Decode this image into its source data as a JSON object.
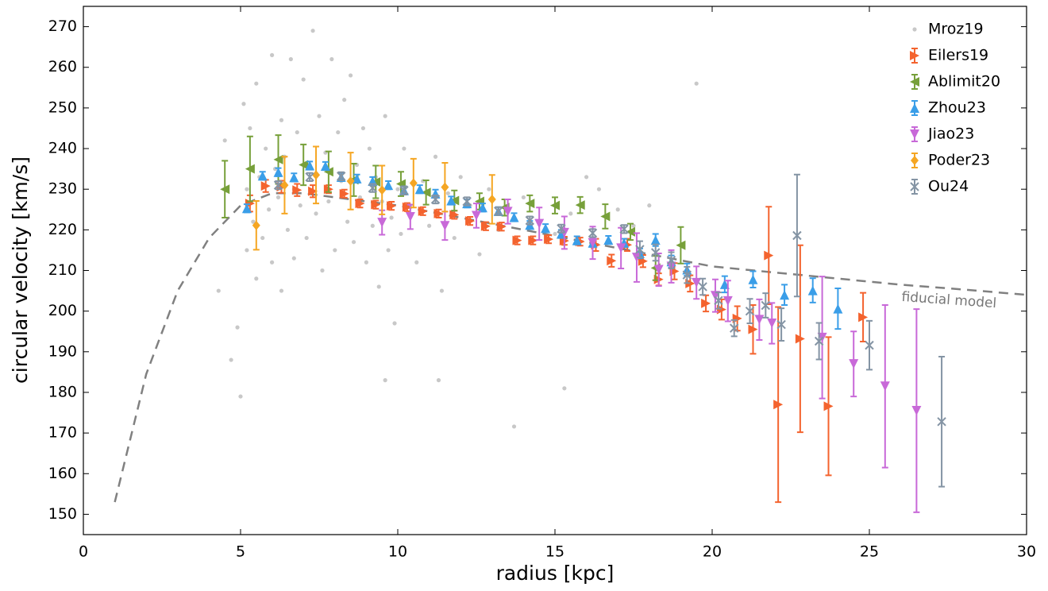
{
  "chart_data": {
    "type": "errorbar",
    "xlabel": "radius [kpc]",
    "ylabel": "circular velocity [km/s]",
    "xlim": [
      0,
      30
    ],
    "ylim": [
      145,
      275
    ],
    "xticks": [
      0,
      5,
      10,
      15,
      20,
      25,
      30
    ],
    "yticks": [
      150,
      160,
      170,
      180,
      190,
      200,
      210,
      220,
      230,
      240,
      250,
      260,
      270
    ],
    "legend": "upper right",
    "model": {
      "label": "fiducial model",
      "color": "#808080",
      "x": [
        1,
        2,
        3,
        4,
        5,
        6,
        7,
        8,
        10,
        12,
        14,
        16,
        18,
        20,
        22,
        24,
        26,
        28,
        30
      ],
      "values": [
        153,
        184.5,
        205,
        218,
        226,
        229,
        229,
        228,
        226,
        223,
        220,
        217,
        214,
        211,
        209.5,
        208,
        206.5,
        205.3,
        204
      ]
    },
    "series": [
      {
        "name": "Mroz19",
        "color": "#c8c8c8",
        "marker": "circle",
        "x": [
          4.3,
          4.5,
          4.7,
          4.9,
          5.0,
          5.1,
          5.2,
          5.2,
          5.3,
          5.4,
          5.5,
          5.5,
          5.6,
          5.7,
          5.8,
          5.9,
          6.0,
          6.0,
          6.1,
          6.2,
          6.3,
          6.3,
          6.4,
          6.5,
          6.6,
          6.7,
          6.7,
          6.8,
          6.9,
          7.0,
          7.1,
          7.2,
          7.3,
          7.4,
          7.5,
          7.6,
          7.7,
          7.8,
          7.9,
          8.0,
          8.1,
          8.2,
          8.3,
          8.4,
          8.5,
          8.6,
          8.7,
          8.8,
          8.9,
          9.0,
          9.1,
          9.2,
          9.3,
          9.4,
          9.5,
          9.6,
          9.7,
          9.8,
          9.9,
          10.0,
          10.1,
          10.2,
          10.4,
          10.6,
          10.8,
          11.0,
          11.2,
          11.4,
          11.6,
          11.8,
          12.0,
          12.3,
          12.6,
          12.9,
          13.2,
          13.5,
          14.0,
          14.5,
          15.0,
          15.5,
          16.0,
          16.4,
          17.0,
          17.5,
          18.0,
          19.5,
          13.7,
          15.3,
          11.3,
          9.6
        ],
        "values": [
          205,
          242,
          188,
          196,
          179,
          251,
          230,
          215,
          245,
          222,
          256,
          208,
          233,
          218,
          240,
          225,
          263,
          212,
          235,
          228,
          247,
          205,
          238,
          220,
          262,
          230,
          213,
          244,
          226,
          257,
          218,
          236,
          269,
          224,
          248,
          210,
          239,
          227,
          262,
          215,
          244,
          232,
          252,
          222,
          258,
          217,
          236,
          228,
          245,
          212,
          240,
          221,
          233,
          206,
          227,
          248,
          215,
          223,
          197,
          230,
          219,
          240,
          226,
          212,
          232,
          221,
          238,
          205,
          229,
          218,
          233,
          226,
          214,
          230,
          220,
          225,
          228,
          222,
          219,
          224,
          233,
          230,
          225,
          221,
          226,
          256,
          171.6,
          181,
          183,
          183
        ]
      },
      {
        "name": "Eilers19",
        "color": "#f4632e",
        "marker": "tri-right",
        "x": [
          5.3,
          5.8,
          6.3,
          6.8,
          7.3,
          7.8,
          8.3,
          8.8,
          9.3,
          9.8,
          10.3,
          10.8,
          11.3,
          11.8,
          12.3,
          12.8,
          13.3,
          13.8,
          14.3,
          14.8,
          15.3,
          15.8,
          16.3,
          16.8,
          17.3,
          17.8,
          18.3,
          18.8,
          19.3,
          19.8,
          20.3,
          20.8,
          21.3,
          21.8,
          22.1,
          22.8,
          23.7,
          24.8
        ],
        "values": [
          226.5,
          230.8,
          230.6,
          229.8,
          229.5,
          230,
          228.9,
          226.5,
          226.2,
          225.9,
          225.6,
          224.6,
          224,
          223.7,
          222.2,
          220.9,
          220.8,
          217.4,
          217.4,
          217.7,
          217.3,
          217.1,
          216.3,
          212.4,
          216.3,
          212.3,
          207.8,
          209.8,
          206.8,
          201.9,
          200.4,
          198.2,
          195.5,
          213.7,
          177,
          193.2,
          176.6,
          198.5
        ],
        "errors": [
          2,
          1.5,
          1.5,
          1.5,
          1.5,
          1,
          1,
          1,
          1,
          1,
          1,
          1,
          1,
          1,
          1,
          1,
          1,
          1,
          1,
          1,
          1,
          1,
          1.5,
          1.5,
          1.5,
          1.5,
          1.5,
          2,
          2,
          2,
          2.5,
          3,
          6,
          12,
          24,
          23,
          17,
          6
        ]
      },
      {
        "name": "Ablimit20",
        "color": "#77a03a",
        "marker": "tri-left",
        "x": [
          4.5,
          5.3,
          6.2,
          7.0,
          7.8,
          8.6,
          9.3,
          10.1,
          10.9,
          11.8,
          12.6,
          13.4,
          14.2,
          15,
          15.8,
          16.6,
          17.4,
          18.2,
          19
        ],
        "values": [
          230,
          235,
          237.3,
          236,
          234.3,
          232.3,
          231.8,
          231.3,
          229.2,
          227.2,
          227,
          225.5,
          226.5,
          226,
          226.1,
          223.3,
          219.5,
          210.6,
          216.2
        ],
        "errors": [
          7,
          8,
          6,
          5,
          5,
          4,
          4,
          3,
          3,
          2.5,
          2,
          2,
          2,
          2,
          2,
          3,
          2,
          3,
          4.5
        ]
      },
      {
        "name": "Zhou23",
        "color": "#3a9ee8",
        "marker": "tri-up",
        "x": [
          5.2,
          5.7,
          6.2,
          6.7,
          7.2,
          7.7,
          8.2,
          8.7,
          9.2,
          9.7,
          10.2,
          10.7,
          11.2,
          11.7,
          12.2,
          12.7,
          13.2,
          13.7,
          14.2,
          14.7,
          15.2,
          15.7,
          16.2,
          16.7,
          17.2,
          17.7,
          18.2,
          18.7,
          19.2,
          20.4,
          21.3,
          22.3,
          23.2,
          24
        ],
        "values": [
          225.3,
          233.3,
          234.2,
          232.9,
          235.8,
          235.7,
          233,
          232.6,
          232,
          231,
          229.7,
          230,
          228.9,
          227.2,
          226.5,
          225.5,
          224.6,
          223.1,
          221.2,
          220.4,
          219,
          217.4,
          216.8,
          217.5,
          216.8,
          214.2,
          217.5,
          212.2,
          210.2,
          206.6,
          207.8,
          204,
          205.1,
          200.6
        ],
        "errors": [
          1,
          1,
          1,
          1,
          1,
          1,
          1,
          1,
          1,
          1,
          1,
          1,
          1,
          1,
          1,
          1,
          1,
          1,
          1,
          1,
          1,
          1,
          1,
          1,
          1,
          1.2,
          1.5,
          1.5,
          1.5,
          2,
          2,
          2.5,
          3,
          5
        ]
      },
      {
        "name": "Jiao23",
        "color": "#c869d8",
        "marker": "tri-down",
        "x": [
          9.5,
          10.4,
          11.5,
          12.5,
          13.5,
          14.5,
          15.3,
          16.2,
          17.1,
          17.6,
          18.3,
          18.7,
          19.5,
          20.1,
          20.5,
          21.5,
          21.9,
          23.5,
          24.5,
          25.5,
          26.5
        ],
        "values": [
          221.8,
          223.2,
          221,
          223.5,
          224.5,
          221.5,
          219.3,
          216.8,
          215.5,
          213.2,
          210.2,
          211,
          207,
          203.8,
          202.5,
          197.9,
          197,
          193.5,
          187,
          181.5,
          175.5
        ],
        "errors": [
          3,
          3,
          3.5,
          3,
          3,
          4,
          4,
          4,
          5,
          6,
          4,
          4,
          4,
          4,
          5,
          5,
          5,
          15,
          8,
          20,
          25
        ]
      },
      {
        "name": "Poder23",
        "color": "#f5a623",
        "marker": "diamond",
        "x": [
          5.5,
          6.4,
          7.4,
          8.5,
          9.5,
          10.5,
          11.5,
          13
        ],
        "values": [
          221.1,
          231,
          233.5,
          232,
          229.8,
          231.5,
          230.5,
          227.5
        ],
        "errors": [
          6,
          7,
          7,
          7,
          6,
          6,
          6,
          6
        ]
      },
      {
        "name": "Ou24",
        "color": "#8494a4",
        "marker": "x",
        "x": [
          6.2,
          7.2,
          8.2,
          9.2,
          10.2,
          11.2,
          12.2,
          13.2,
          14.2,
          15.2,
          16.2,
          17.2,
          17.7,
          18.2,
          18.7,
          19.2,
          19.7,
          20.2,
          20.7,
          21.2,
          21.7,
          22.2,
          22.7,
          23.4,
          25,
          27.3
        ],
        "values": [
          231,
          233,
          233.2,
          230.3,
          229.7,
          227.5,
          227,
          224.6,
          222.3,
          220.3,
          219.2,
          220.2,
          215.2,
          214.4,
          212.5,
          208.9,
          206,
          202.6,
          195.8,
          200,
          201.4,
          196.7,
          218.6,
          192.6,
          191.6,
          172.8
        ],
        "errors": [
          1,
          1,
          1,
          1,
          1,
          1,
          1,
          1,
          1,
          1,
          1,
          1,
          2,
          2,
          2,
          2,
          2,
          2,
          2,
          3,
          3,
          4,
          15,
          4.5,
          6,
          16
        ]
      }
    ]
  }
}
